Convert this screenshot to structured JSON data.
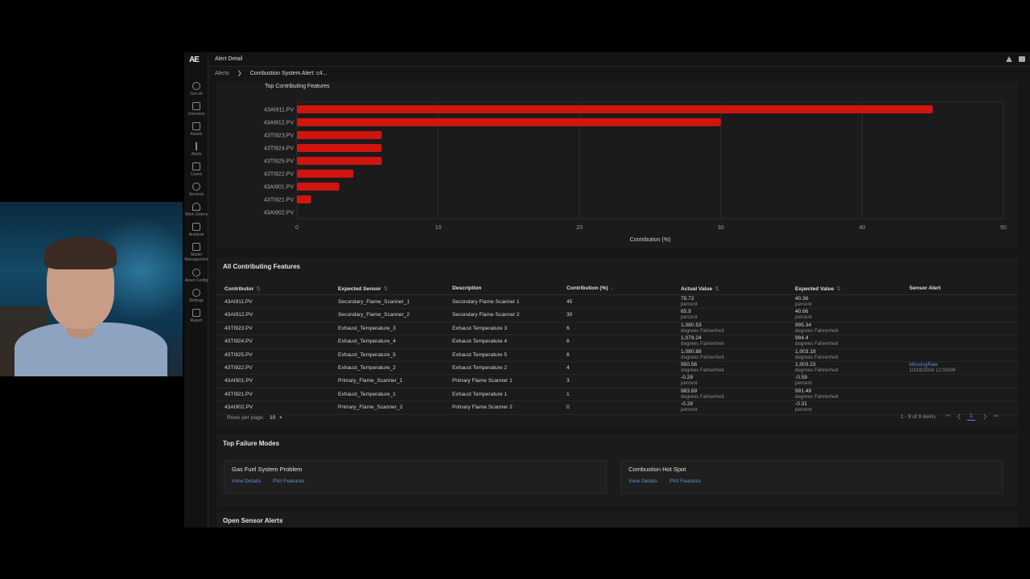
{
  "topbar": {
    "title": "Alert Detail"
  },
  "breadcrumb": {
    "root": "Alerts",
    "current": "Combustion System Alert: c4..."
  },
  "sidebar": {
    "logo": "AE",
    "items": [
      {
        "label": "Gen AI",
        "icon": "search-icon"
      },
      {
        "label": "Overview",
        "icon": "grid-icon"
      },
      {
        "label": "Assets",
        "icon": "chart-icon"
      },
      {
        "label": "Alerts",
        "icon": "exclamation-icon"
      },
      {
        "label": "Cases",
        "icon": "briefcase-icon"
      },
      {
        "label": "Sensors",
        "icon": "gauge-icon"
      },
      {
        "label": "Work Orders",
        "icon": "triangle-icon"
      },
      {
        "label": "Analysis",
        "icon": "bar-chart-icon"
      },
      {
        "label": "Model",
        "label2": "Management",
        "icon": "model-icon"
      },
      {
        "label": "Asset Config",
        "icon": "hierarchy-icon"
      },
      {
        "label": "Settings",
        "icon": "gear-icon"
      },
      {
        "label": "Report",
        "icon": "document-icon"
      }
    ]
  },
  "chart_data": {
    "type": "bar",
    "orientation": "horizontal",
    "title": "Top Contributing Features",
    "xlabel": "Contribution (%)",
    "ylabel": "",
    "categories": [
      "43AI911.PV",
      "43AI912.PV",
      "43TI923.PV",
      "43TI924.PV",
      "43TI925.PV",
      "43TI922.PV",
      "43AI901.PV",
      "43TI921.PV",
      "43AI902.PV"
    ],
    "values": [
      45,
      30,
      6,
      6,
      6,
      4,
      3,
      1,
      0
    ],
    "xlim": [
      0,
      50
    ],
    "xticks": [
      0,
      10,
      20,
      30,
      40,
      50
    ],
    "grid": true,
    "bar_color": "#d0140f"
  },
  "table": {
    "title": "All Contributing Features",
    "headers": {
      "contributor": "Contributor",
      "expected_sensor": "Expected Sensor",
      "description": "Description",
      "contribution": "Contribution (%)",
      "actual": "Actual Value",
      "expected": "Expected Value",
      "sensor_alert": "Sensor Alert"
    },
    "rows": [
      {
        "contributor": "43AI911.PV",
        "sensor": "Secondary_Flame_Scanner_1",
        "description": "Secondary Flame Scanner 1",
        "contribution": "45",
        "actual": "78.72",
        "actual_unit": "percent",
        "expected": "40.36",
        "expected_unit": "percent",
        "alert": "",
        "alert_time": ""
      },
      {
        "contributor": "43AI912.PV",
        "sensor": "Secondary_Flame_Scanner_2",
        "description": "Secondary Flame Scanner 2",
        "contribution": "30",
        "actual": "65.9",
        "actual_unit": "percent",
        "expected": "40.66",
        "expected_unit": "percent",
        "alert": "",
        "alert_time": ""
      },
      {
        "contributor": "43TI923.PV",
        "sensor": "Exhaust_Temperature_3",
        "description": "Exhaust Temperature 3",
        "contribution": "6",
        "actual": "1,080.53",
        "actual_unit": "degrees Fahrenheit",
        "expected": "995.34",
        "expected_unit": "degrees Fahrenheit",
        "alert": "",
        "alert_time": ""
      },
      {
        "contributor": "43TI924.PV",
        "sensor": "Exhaust_Temperature_4",
        "description": "Exhaust Temperature 4",
        "contribution": "6",
        "actual": "1,079.24",
        "actual_unit": "degrees Fahrenheit",
        "expected": "994.4",
        "expected_unit": "degrees Fahrenheit",
        "alert": "",
        "alert_time": ""
      },
      {
        "contributor": "43TI925.PV",
        "sensor": "Exhaust_Temperature_5",
        "description": "Exhaust Temperature 5",
        "contribution": "6",
        "actual": "1,080.88",
        "actual_unit": "degrees Fahrenheit",
        "expected": "1,003.18",
        "expected_unit": "degrees Fahrenheit",
        "alert": "",
        "alert_time": ""
      },
      {
        "contributor": "43TI922.PV",
        "sensor": "Exhaust_Temperature_2",
        "description": "Exhaust Temperature 2",
        "contribution": "4",
        "actual": "950.56",
        "actual_unit": "degrees Fahrenheit",
        "expected": "1,003.23",
        "expected_unit": "degrees Fahrenheit",
        "alert": "MissingRaw",
        "alert_time": "10/18/2024 12:00AM"
      },
      {
        "contributor": "43AI901.PV",
        "sensor": "Primary_Flame_Scanner_1",
        "description": "Primary Flame Scanner 1",
        "contribution": "3",
        "actual": "-0.29",
        "actual_unit": "percent",
        "expected": "-0.59",
        "expected_unit": "percent",
        "alert": "",
        "alert_time": ""
      },
      {
        "contributor": "43TI921.PV",
        "sensor": "Exhaust_Temperature_1",
        "description": "Exhaust Temperature 1",
        "contribution": "1",
        "actual": "983.69",
        "actual_unit": "degrees Fahrenheit",
        "expected": "991.49",
        "expected_unit": "degrees Fahrenheit",
        "alert": "",
        "alert_time": ""
      },
      {
        "contributor": "43AI902.PV",
        "sensor": "Primary_Flame_Scanner_2",
        "description": "Primary Flame Scanner 2",
        "contribution": "0",
        "actual": "-0.28",
        "actual_unit": "percent",
        "expected": "-0.31",
        "expected_unit": "percent",
        "alert": "",
        "alert_time": ""
      }
    ],
    "footer": {
      "rows_per_page_label": "Rows per page:",
      "rows_per_page": "10",
      "range": "1 - 9 of 9 items",
      "current_page": "1"
    }
  },
  "failure_modes": {
    "title": "Top Failure Modes",
    "cards": [
      {
        "name": "Gas Fuel System Problem",
        "view": "View Details",
        "plot": "Plot Features"
      },
      {
        "name": "Combustion Hot Spot",
        "view": "View Details",
        "plot": "Plot Features"
      }
    ]
  },
  "open_alerts": {
    "title": "Open Sensor Alerts"
  }
}
